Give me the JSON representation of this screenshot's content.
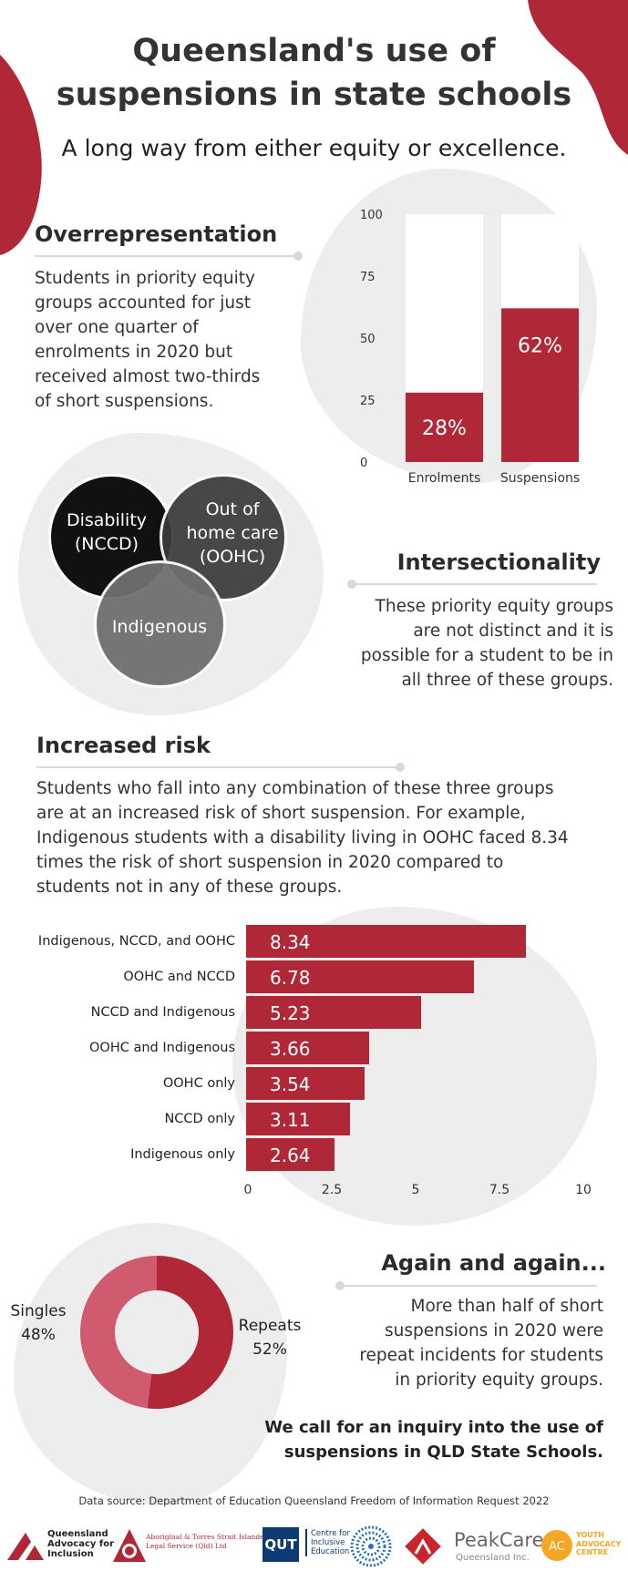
{
  "header": {
    "title_line1": "Queensland's use of",
    "title_line2": "suspensions in state schools",
    "subtitle": "A long way from either equity or excellence."
  },
  "overrepresentation": {
    "heading": "Overrepresentation",
    "text_lines": [
      "Students in priority equity",
      "groups accounted for just",
      "over one quarter of",
      "enrolments in 2020 but",
      "received almost two-thirds",
      "of short suspensions."
    ]
  },
  "chart_data": [
    {
      "type": "bar",
      "categories": [
        "Enrolments",
        "Suspensions"
      ],
      "values": [
        28,
        62
      ],
      "data_labels": [
        "28%",
        "62%"
      ],
      "ylim": [
        0,
        100
      ],
      "yticks": [
        "0",
        "25",
        "50",
        "75",
        "100"
      ],
      "bar_color": "#b02838"
    },
    {
      "type": "bar",
      "orientation": "horizontal",
      "categories": [
        "Indigenous, NCCD, and OOHC",
        "OOHC and NCCD",
        "NCCD and Indigenous",
        "OOHC and Indigenous",
        "OOHC only",
        "NCCD only",
        "Indigenous only"
      ],
      "values": [
        8.34,
        6.78,
        5.23,
        3.66,
        3.54,
        3.11,
        2.64
      ],
      "data_labels": [
        "8.34",
        "6.78",
        "5.23",
        "3.66",
        "3.54",
        "3.11",
        "2.64"
      ],
      "xlim": [
        0,
        10
      ],
      "xticks": [
        "0",
        "2.5",
        "5",
        "7.5",
        "10"
      ],
      "bar_color": "#b02838"
    },
    {
      "type": "pie",
      "donut": true,
      "labels": [
        "Repeats",
        "Singles"
      ],
      "values": [
        52,
        48
      ],
      "data_labels": [
        "52%",
        "48%"
      ],
      "colors": [
        "#b02838",
        "#d05a6e"
      ]
    }
  ],
  "venn": {
    "disability": [
      "Disability",
      "(NCCD)"
    ],
    "oohc": [
      "Out of",
      "home care",
      "(OOHC)"
    ],
    "indigenous": "Indigenous"
  },
  "intersectionality": {
    "heading": "Intersectionality",
    "text_lines": [
      "These priority equity groups",
      "are not distinct and it is",
      "possible for a student to be in",
      "all three of these groups."
    ]
  },
  "risk": {
    "heading": "Increased risk",
    "text_lines": [
      "Students who fall into any combination of these three groups",
      "are at an increased risk of short suspension. For example,",
      "Indigenous students with a disability living in OOHC faced 8.34",
      "times the risk of short suspension in 2020 compared to",
      "students not in any of these groups."
    ]
  },
  "again": {
    "heading": "Again and again...",
    "text_lines": [
      "More than half of short",
      "suspensions in 2020 were",
      "repeat incidents for students",
      "in priority equity groups."
    ],
    "call_lines": [
      "We call for an inquiry into the use of",
      "suspensions in QLD State Schools."
    ]
  },
  "footer": {
    "source": "Data source: Department of Education Queensland Freedom of Information Request 2022",
    "logos": {
      "qai": [
        "Queensland",
        "Advocacy for",
        "Inclusion"
      ],
      "atsils": [
        "Aboriginal & Torres Strait Islander",
        "Legal Service (Qld) Ltd"
      ],
      "qut": "QUT",
      "cie": [
        "Centre for",
        "Inclusive",
        "Education"
      ],
      "peakcare": "PeakCare",
      "peakcare_sub": "Queensland Inc.",
      "yac": [
        "YOUTH",
        "ADVOCACY",
        "CENTRE"
      ]
    }
  }
}
